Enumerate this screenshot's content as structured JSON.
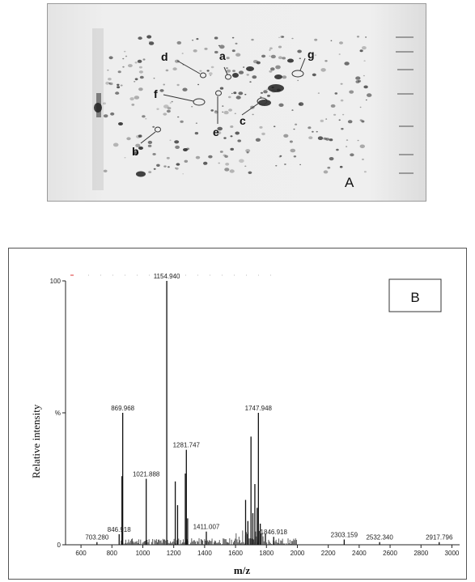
{
  "panel_a": {
    "label": "A",
    "spot_labels": [
      "a",
      "b",
      "c",
      "d",
      "e",
      "f",
      "g"
    ]
  },
  "panel_b": {
    "label": "B"
  },
  "chart_data": {
    "type": "bar",
    "title": "",
    "xlabel": "m/z",
    "ylabel": "Relative intensity",
    "xlim": [
      500,
      3050
    ],
    "ylim": [
      0,
      100
    ],
    "x_ticks": [
      600,
      800,
      1000,
      1200,
      1400,
      1600,
      1800,
      2000,
      2200,
      2400,
      2600,
      2800,
      3000
    ],
    "y_tick_labels": [
      {
        "value": 0,
        "label": "0"
      },
      {
        "value": 50,
        "label": "%"
      },
      {
        "value": 100,
        "label": "100"
      }
    ],
    "peaks": [
      {
        "mz": 703.28,
        "intensity": 1,
        "label": "703.280"
      },
      {
        "mz": 846.918,
        "intensity": 4,
        "label": "846.918"
      },
      {
        "mz": 869.968,
        "intensity": 50,
        "label": "869.968"
      },
      {
        "mz": 1021.888,
        "intensity": 25,
        "label": "1021.888"
      },
      {
        "mz": 1154.94,
        "intensity": 100,
        "label": "1154.940"
      },
      {
        "mz": 1281.747,
        "intensity": 36,
        "label": "1281.747"
      },
      {
        "mz": 1411.007,
        "intensity": 5,
        "label": "1411.007"
      },
      {
        "mz": 1747.948,
        "intensity": 50,
        "label": "1747.948"
      },
      {
        "mz": 1846.918,
        "intensity": 3,
        "label": "1846.918"
      },
      {
        "mz": 2303.159,
        "intensity": 2,
        "label": "2303.159"
      },
      {
        "mz": 2532.34,
        "intensity": 1,
        "label": "2532.340"
      },
      {
        "mz": 2917.796,
        "intensity": 1,
        "label": "2917.796"
      },
      {
        "mz": 865,
        "intensity": 26,
        "label": ""
      },
      {
        "mz": 1210,
        "intensity": 24,
        "label": ""
      },
      {
        "mz": 1225,
        "intensity": 15,
        "label": ""
      },
      {
        "mz": 1275,
        "intensity": 27,
        "label": ""
      },
      {
        "mz": 1290,
        "intensity": 10,
        "label": ""
      },
      {
        "mz": 1665,
        "intensity": 17,
        "label": ""
      },
      {
        "mz": 1680,
        "intensity": 9,
        "label": ""
      },
      {
        "mz": 1700,
        "intensity": 41,
        "label": ""
      },
      {
        "mz": 1712,
        "intensity": 12,
        "label": ""
      },
      {
        "mz": 1725,
        "intensity": 23,
        "label": ""
      },
      {
        "mz": 1740,
        "intensity": 14,
        "label": ""
      },
      {
        "mz": 1760,
        "intensity": 8,
        "label": ""
      }
    ]
  }
}
